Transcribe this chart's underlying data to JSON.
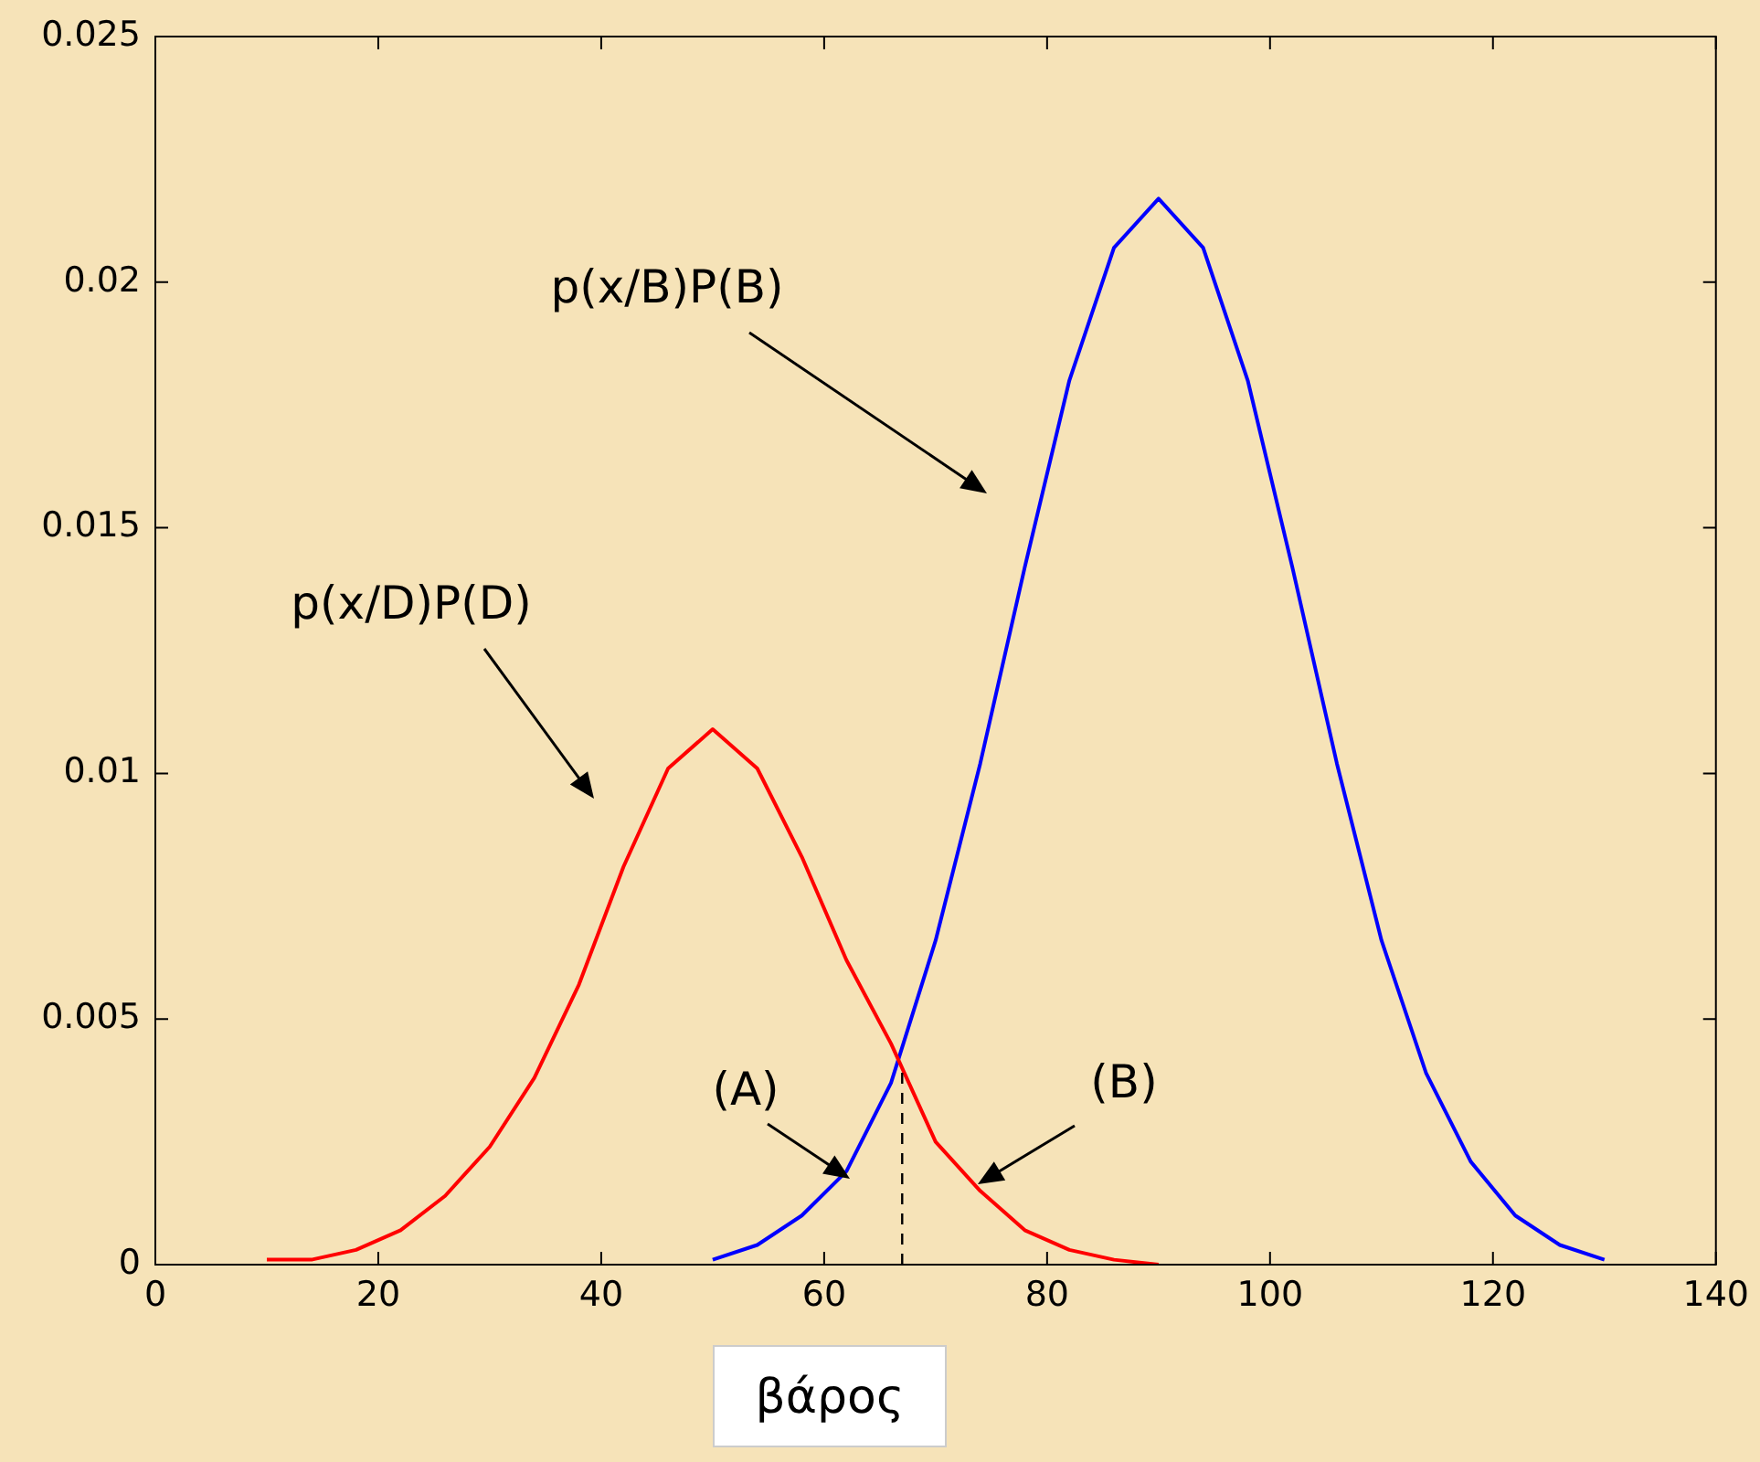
{
  "chart_data": {
    "type": "line",
    "xlabel": "βάρος",
    "xlim": [
      0,
      140
    ],
    "xticks": [
      0,
      20,
      40,
      60,
      80,
      100,
      120,
      140
    ],
    "ylim": [
      0,
      0.025
    ],
    "yticks": [
      0,
      0.005,
      0.01,
      0.015,
      0.02,
      0.025
    ],
    "grid": false,
    "legend": false,
    "marker": "none",
    "line_style": "solid",
    "series": [
      {
        "color": "#ff0000",
        "x": [
          10,
          14,
          18,
          22,
          26,
          30,
          34,
          38,
          42,
          46,
          50,
          54,
          58,
          62,
          66,
          70,
          74,
          78,
          82,
          86,
          90
        ],
        "values": [
          0.0001,
          0.0001,
          0.0003,
          0.0007,
          0.0014,
          0.0024,
          0.0038,
          0.0057,
          0.0081,
          0.0101,
          0.0109,
          0.0101,
          0.0083,
          0.0062,
          0.0045,
          0.0025,
          0.0015,
          0.0007,
          0.0003,
          0.0001,
          0
        ]
      },
      {
        "color": "#0000ff",
        "x": [
          50,
          54,
          58,
          62,
          66,
          70,
          74,
          78,
          82,
          86,
          90,
          94,
          98,
          102,
          106,
          110,
          114,
          118,
          122,
          126,
          130
        ],
        "values": [
          0.0001,
          0.0004,
          0.001,
          0.0019,
          0.0037,
          0.0066,
          0.0102,
          0.0142,
          0.018,
          0.0207,
          0.0217,
          0.0207,
          0.018,
          0.0142,
          0.0102,
          0.0066,
          0.0039,
          0.0021,
          0.001,
          0.0004,
          0.0001
        ]
      }
    ],
    "ref_lines": [
      {
        "axis": "x",
        "value": 67,
        "color": "#000000",
        "line_style": "dashed"
      }
    ],
    "annotations": [
      "p(x/B)P(B)",
      "p(x/D)P(D)",
      "(A)",
      "(B)"
    ]
  }
}
